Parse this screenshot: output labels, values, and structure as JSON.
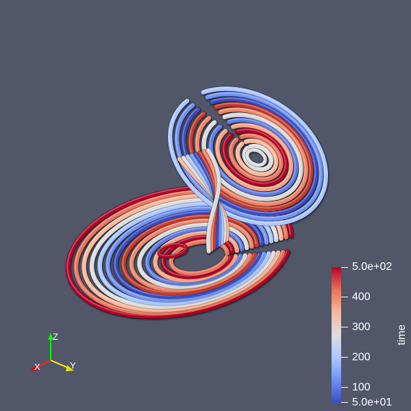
{
  "colorbar": {
    "title": "time",
    "labels": [
      "5.0e+02",
      "400",
      "300",
      "200",
      "100",
      "5.0e+01"
    ],
    "colors": [
      "#3b4cc0",
      "#6f92f3",
      "#aac7fd",
      "#dddddd",
      "#f7b89c",
      "#e7745b",
      "#b40426"
    ]
  },
  "axes": {
    "x": "X",
    "y": "Y",
    "z": "Z",
    "x_color": "#ff0000",
    "y_color": "#ffff00",
    "z_color": "#00ff00"
  },
  "scene": {
    "background": "#525669",
    "object": "lorenz-attractor-tubes"
  }
}
